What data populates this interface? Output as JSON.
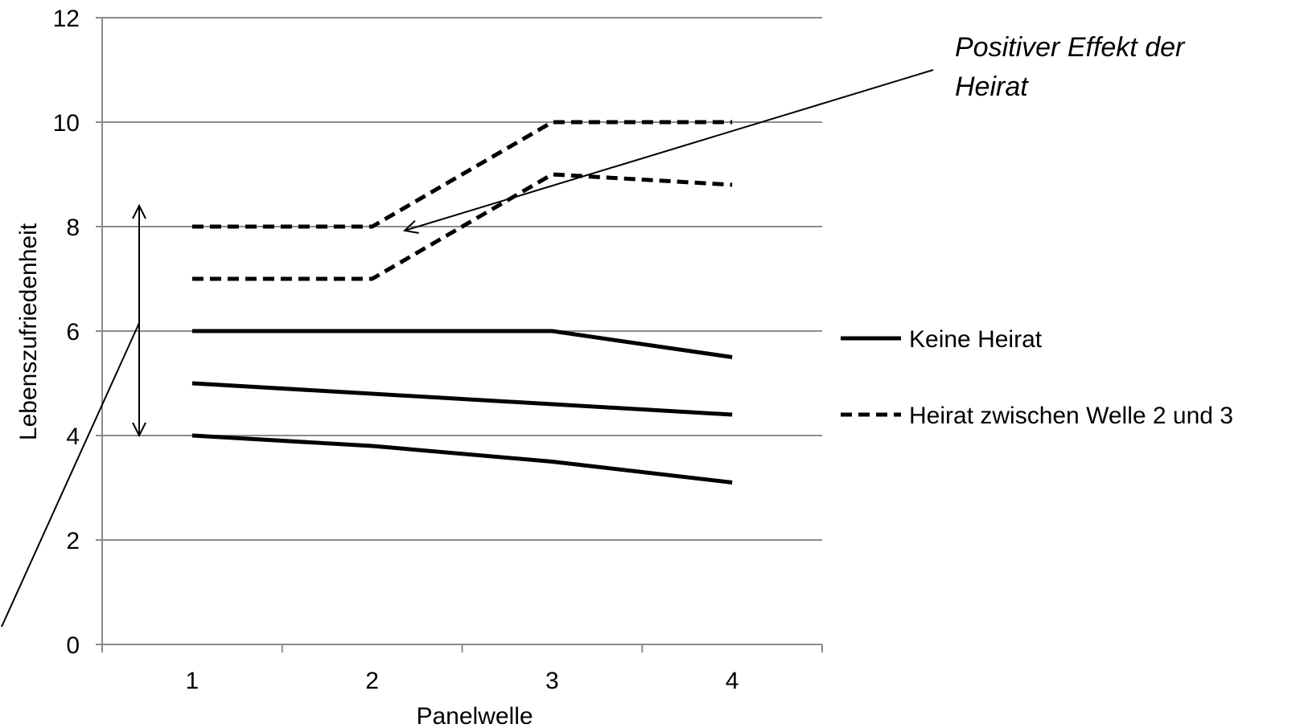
{
  "chart_data": {
    "type": "line",
    "xlabel": "Panelwelle",
    "ylabel": "Lebenszufriedenheit",
    "categories": [
      "1",
      "2",
      "3",
      "4"
    ],
    "x": [
      1,
      2,
      3,
      4
    ],
    "ylim": [
      0,
      12
    ],
    "yticks": [
      "0",
      "2",
      "4",
      "6",
      "8",
      "10",
      "12"
    ],
    "grid": "horizontal",
    "legend_position": "right",
    "legend": [
      {
        "label": "Keine Heirat",
        "style": "solid"
      },
      {
        "label": "Heirat zwischen Welle 2 und 3",
        "style": "dashed"
      }
    ],
    "series": [
      {
        "group": "Keine Heirat",
        "style": "solid",
        "values": [
          6,
          6,
          6,
          5.5
        ]
      },
      {
        "group": "Keine Heirat",
        "style": "solid",
        "values": [
          5,
          4.8,
          4.6,
          4.4
        ]
      },
      {
        "group": "Keine Heirat",
        "style": "solid",
        "values": [
          4,
          3.8,
          3.5,
          3.1
        ]
      },
      {
        "group": "Heirat zwischen Welle 2 und 3",
        "style": "dashed",
        "values": [
          8,
          8,
          10,
          10
        ]
      },
      {
        "group": "Heirat zwischen Welle 2 und 3",
        "style": "dashed",
        "values": [
          7,
          7,
          9,
          8.8
        ]
      }
    ],
    "annotation": {
      "text_lines": [
        "Positiver Effekt der",
        "Heirat"
      ]
    },
    "range_marker": {
      "from": 4,
      "to": 8.4
    }
  },
  "colors": {
    "line": "#000000",
    "grid": "#8c8c8c",
    "axis": "#8c8c8c"
  }
}
